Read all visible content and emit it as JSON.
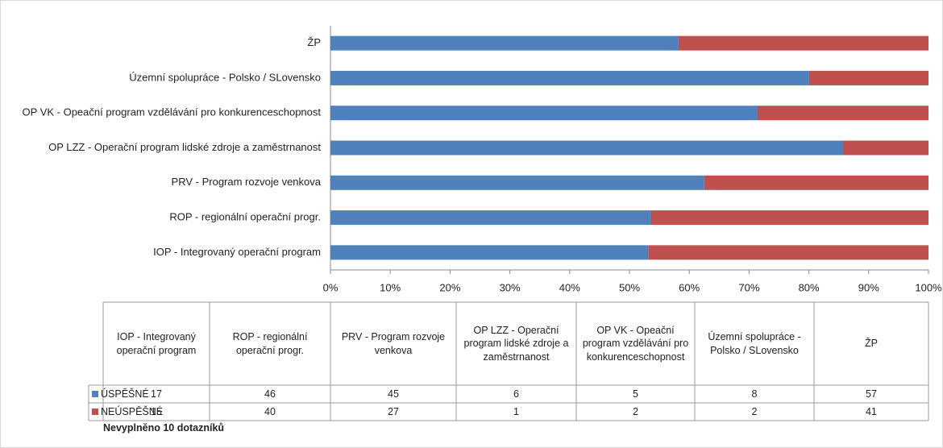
{
  "chart_data": {
    "type": "bar",
    "orientation": "horizontal",
    "stacking": "percent",
    "categories": [
      "IOP - Integrovaný operační program",
      "ROP - regionální operační progr.",
      "PRV - Program rozvoje venkova",
      "OP LZZ - Operační program lidské zdroje a zaměstrnanost",
      "OP VK - Opeační program vzdělávání pro konkurenceschopnost",
      "Územní spolupráce - Polsko / SLovensko",
      "ŽP"
    ],
    "series": [
      {
        "name": "ÚSPĚŠNÉ",
        "color": "#4f81bd",
        "values": [
          17,
          46,
          45,
          6,
          5,
          8,
          57
        ]
      },
      {
        "name": "NEÚSPĚŠNÉ",
        "color": "#c0504d",
        "values": [
          15,
          40,
          27,
          1,
          2,
          2,
          41
        ]
      }
    ],
    "xlim": [
      0,
      100
    ],
    "xticks": [
      {
        "value": 0,
        "label": "0%"
      },
      {
        "value": 10,
        "label": "10%"
      },
      {
        "value": 20,
        "label": "20%"
      },
      {
        "value": 30,
        "label": "30%"
      },
      {
        "value": 40,
        "label": "40%"
      },
      {
        "value": 50,
        "label": "50%"
      },
      {
        "value": 60,
        "label": "60%"
      },
      {
        "value": 70,
        "label": "70%"
      },
      {
        "value": 80,
        "label": "80%"
      },
      {
        "value": 90,
        "label": "90%"
      },
      {
        "value": 100,
        "label": "100%"
      }
    ],
    "data_table": true
  },
  "note": "Nevyplněno 10 dotazníků"
}
